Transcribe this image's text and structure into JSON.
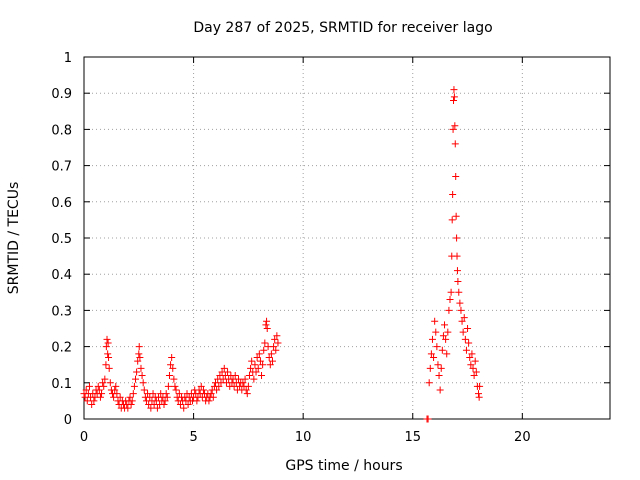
{
  "chart_data": {
    "type": "scatter",
    "title": "Day 287 of 2025, SRMTID for receiver lago",
    "xlabel": "GPS time / hours",
    "ylabel": "SRMTID / TECUs",
    "xlim": [
      0,
      24
    ],
    "ylim": [
      0,
      1
    ],
    "xticks": [
      0,
      5,
      10,
      15,
      20
    ],
    "yticks": [
      0,
      0.1,
      0.2,
      0.3,
      0.4,
      0.5,
      0.6,
      0.7,
      0.8,
      0.9,
      1
    ],
    "xtick_labels": [
      "0",
      "5",
      "10",
      "15",
      "20"
    ],
    "ytick_labels": [
      "0",
      "0.1",
      "0.2",
      "0.3",
      "0.4",
      "0.5",
      "0.6",
      "0.7",
      "0.8",
      "0.9",
      "1"
    ],
    "grid": true,
    "marker": "+",
    "color": "#ff0000",
    "series": [
      {
        "name": "SRMTID",
        "points": [
          [
            0.0,
            0.07
          ],
          [
            0.05,
            0.06
          ],
          [
            0.1,
            0.08
          ],
          [
            0.15,
            0.05
          ],
          [
            0.2,
            0.07
          ],
          [
            0.25,
            0.09
          ],
          [
            0.3,
            0.06
          ],
          [
            0.35,
            0.04
          ],
          [
            0.4,
            0.07
          ],
          [
            0.45,
            0.05
          ],
          [
            0.5,
            0.06
          ],
          [
            0.55,
            0.08
          ],
          [
            0.6,
            0.07
          ],
          [
            0.65,
            0.09
          ],
          [
            0.7,
            0.08
          ],
          [
            0.75,
            0.06
          ],
          [
            0.8,
            0.07
          ],
          [
            0.85,
            0.1
          ],
          [
            0.9,
            0.09
          ],
          [
            0.95,
            0.11
          ],
          [
            1.0,
            0.15
          ],
          [
            1.02,
            0.2
          ],
          [
            1.05,
            0.22
          ],
          [
            1.08,
            0.18
          ],
          [
            1.1,
            0.21
          ],
          [
            1.12,
            0.17
          ],
          [
            1.15,
            0.14
          ],
          [
            1.2,
            0.1
          ],
          [
            1.25,
            0.08
          ],
          [
            1.3,
            0.07
          ],
          [
            1.35,
            0.06
          ],
          [
            1.4,
            0.08
          ],
          [
            1.45,
            0.09
          ],
          [
            1.5,
            0.07
          ],
          [
            1.55,
            0.05
          ],
          [
            1.6,
            0.04
          ],
          [
            1.65,
            0.06
          ],
          [
            1.7,
            0.03
          ],
          [
            1.75,
            0.05
          ],
          [
            1.8,
            0.04
          ],
          [
            1.85,
            0.03
          ],
          [
            1.9,
            0.05
          ],
          [
            1.95,
            0.04
          ],
          [
            2.0,
            0.03
          ],
          [
            2.05,
            0.05
          ],
          [
            2.1,
            0.06
          ],
          [
            2.15,
            0.04
          ],
          [
            2.2,
            0.05
          ],
          [
            2.25,
            0.07
          ],
          [
            2.3,
            0.09
          ],
          [
            2.35,
            0.11
          ],
          [
            2.4,
            0.13
          ],
          [
            2.45,
            0.16
          ],
          [
            2.5,
            0.18
          ],
          [
            2.52,
            0.2
          ],
          [
            2.55,
            0.17
          ],
          [
            2.6,
            0.14
          ],
          [
            2.65,
            0.12
          ],
          [
            2.7,
            0.1
          ],
          [
            2.75,
            0.08
          ],
          [
            2.8,
            0.06
          ],
          [
            2.85,
            0.05
          ],
          [
            2.9,
            0.07
          ],
          [
            2.95,
            0.04
          ],
          [
            3.0,
            0.06
          ],
          [
            3.05,
            0.03
          ],
          [
            3.1,
            0.05
          ],
          [
            3.15,
            0.07
          ],
          [
            3.2,
            0.04
          ],
          [
            3.25,
            0.06
          ],
          [
            3.3,
            0.05
          ],
          [
            3.35,
            0.03
          ],
          [
            3.4,
            0.06
          ],
          [
            3.45,
            0.04
          ],
          [
            3.5,
            0.07
          ],
          [
            3.55,
            0.05
          ],
          [
            3.6,
            0.06
          ],
          [
            3.65,
            0.04
          ],
          [
            3.7,
            0.05
          ],
          [
            3.75,
            0.07
          ],
          [
            3.8,
            0.06
          ],
          [
            3.85,
            0.09
          ],
          [
            3.9,
            0.12
          ],
          [
            3.95,
            0.15
          ],
          [
            4.0,
            0.17
          ],
          [
            4.05,
            0.14
          ],
          [
            4.1,
            0.11
          ],
          [
            4.15,
            0.09
          ],
          [
            4.2,
            0.08
          ],
          [
            4.25,
            0.06
          ],
          [
            4.3,
            0.05
          ],
          [
            4.35,
            0.07
          ],
          [
            4.4,
            0.04
          ],
          [
            4.45,
            0.06
          ],
          [
            4.5,
            0.05
          ],
          [
            4.55,
            0.03
          ],
          [
            4.6,
            0.06
          ],
          [
            4.65,
            0.05
          ],
          [
            4.7,
            0.07
          ],
          [
            4.75,
            0.04
          ],
          [
            4.8,
            0.06
          ],
          [
            4.85,
            0.05
          ],
          [
            4.9,
            0.07
          ],
          [
            4.95,
            0.05
          ],
          [
            5.0,
            0.06
          ],
          [
            5.05,
            0.08
          ],
          [
            5.1,
            0.07
          ],
          [
            5.15,
            0.05
          ],
          [
            5.2,
            0.06
          ],
          [
            5.25,
            0.08
          ],
          [
            5.3,
            0.07
          ],
          [
            5.35,
            0.09
          ],
          [
            5.4,
            0.06
          ],
          [
            5.45,
            0.08
          ],
          [
            5.5,
            0.07
          ],
          [
            5.55,
            0.05
          ],
          [
            5.6,
            0.06
          ],
          [
            5.65,
            0.07
          ],
          [
            5.7,
            0.05
          ],
          [
            5.75,
            0.06
          ],
          [
            5.8,
            0.07
          ],
          [
            5.85,
            0.08
          ],
          [
            5.9,
            0.06
          ],
          [
            5.95,
            0.09
          ],
          [
            6.0,
            0.1
          ],
          [
            6.05,
            0.08
          ],
          [
            6.1,
            0.11
          ],
          [
            6.15,
            0.09
          ],
          [
            6.2,
            0.12
          ],
          [
            6.25,
            0.1
          ],
          [
            6.3,
            0.13
          ],
          [
            6.35,
            0.11
          ],
          [
            6.4,
            0.14
          ],
          [
            6.45,
            0.12
          ],
          [
            6.5,
            0.1
          ],
          [
            6.55,
            0.13
          ],
          [
            6.6,
            0.11
          ],
          [
            6.65,
            0.09
          ],
          [
            6.7,
            0.12
          ],
          [
            6.75,
            0.1
          ],
          [
            6.8,
            0.11
          ],
          [
            6.85,
            0.09
          ],
          [
            6.9,
            0.12
          ],
          [
            6.95,
            0.1
          ],
          [
            7.0,
            0.08
          ],
          [
            7.05,
            0.11
          ],
          [
            7.1,
            0.09
          ],
          [
            7.15,
            0.1
          ],
          [
            7.2,
            0.08
          ],
          [
            7.25,
            0.1
          ],
          [
            7.3,
            0.09
          ],
          [
            7.35,
            0.11
          ],
          [
            7.4,
            0.08
          ],
          [
            7.45,
            0.07
          ],
          [
            7.5,
            0.09
          ],
          [
            7.55,
            0.12
          ],
          [
            7.6,
            0.14
          ],
          [
            7.65,
            0.16
          ],
          [
            7.7,
            0.13
          ],
          [
            7.75,
            0.11
          ],
          [
            7.8,
            0.15
          ],
          [
            7.85,
            0.13
          ],
          [
            7.9,
            0.17
          ],
          [
            7.95,
            0.14
          ],
          [
            8.0,
            0.18
          ],
          [
            8.05,
            0.16
          ],
          [
            8.1,
            0.12
          ],
          [
            8.15,
            0.15
          ],
          [
            8.2,
            0.19
          ],
          [
            8.25,
            0.21
          ],
          [
            8.3,
            0.26
          ],
          [
            8.33,
            0.27
          ],
          [
            8.36,
            0.25
          ],
          [
            8.4,
            0.2
          ],
          [
            8.45,
            0.17
          ],
          [
            8.5,
            0.15
          ],
          [
            8.55,
            0.18
          ],
          [
            8.6,
            0.16
          ],
          [
            8.65,
            0.2
          ],
          [
            8.7,
            0.22
          ],
          [
            8.75,
            0.19
          ],
          [
            8.8,
            0.23
          ],
          [
            8.85,
            0.21
          ],
          [
            15.65,
            0.0
          ],
          [
            15.7,
            0.0
          ],
          [
            15.75,
            0.1
          ],
          [
            15.8,
            0.14
          ],
          [
            15.85,
            0.18
          ],
          [
            15.9,
            0.22
          ],
          [
            15.95,
            0.17
          ],
          [
            16.0,
            0.27
          ],
          [
            16.05,
            0.24
          ],
          [
            16.1,
            0.2
          ],
          [
            16.15,
            0.15
          ],
          [
            16.2,
            0.12
          ],
          [
            16.25,
            0.08
          ],
          [
            16.3,
            0.14
          ],
          [
            16.35,
            0.19
          ],
          [
            16.4,
            0.23
          ],
          [
            16.45,
            0.26
          ],
          [
            16.5,
            0.22
          ],
          [
            16.55,
            0.18
          ],
          [
            16.6,
            0.24
          ],
          [
            16.65,
            0.3
          ],
          [
            16.7,
            0.33
          ],
          [
            16.75,
            0.35
          ],
          [
            16.78,
            0.45
          ],
          [
            16.8,
            0.55
          ],
          [
            16.82,
            0.62
          ],
          [
            16.84,
            0.8
          ],
          [
            16.86,
            0.88
          ],
          [
            16.88,
            0.91
          ],
          [
            16.9,
            0.89
          ],
          [
            16.92,
            0.81
          ],
          [
            16.94,
            0.76
          ],
          [
            16.96,
            0.67
          ],
          [
            16.98,
            0.56
          ],
          [
            17.0,
            0.5
          ],
          [
            17.02,
            0.45
          ],
          [
            17.04,
            0.41
          ],
          [
            17.06,
            0.38
          ],
          [
            17.1,
            0.35
          ],
          [
            17.15,
            0.32
          ],
          [
            17.2,
            0.3
          ],
          [
            17.25,
            0.27
          ],
          [
            17.3,
            0.24
          ],
          [
            17.35,
            0.28
          ],
          [
            17.4,
            0.22
          ],
          [
            17.45,
            0.19
          ],
          [
            17.5,
            0.25
          ],
          [
            17.55,
            0.21
          ],
          [
            17.6,
            0.17
          ],
          [
            17.65,
            0.15
          ],
          [
            17.7,
            0.18
          ],
          [
            17.75,
            0.14
          ],
          [
            17.8,
            0.12
          ],
          [
            17.85,
            0.16
          ],
          [
            17.9,
            0.13
          ],
          [
            17.95,
            0.09
          ],
          [
            18.0,
            0.07
          ],
          [
            18.03,
            0.06
          ],
          [
            18.05,
            0.09
          ]
        ]
      }
    ]
  }
}
